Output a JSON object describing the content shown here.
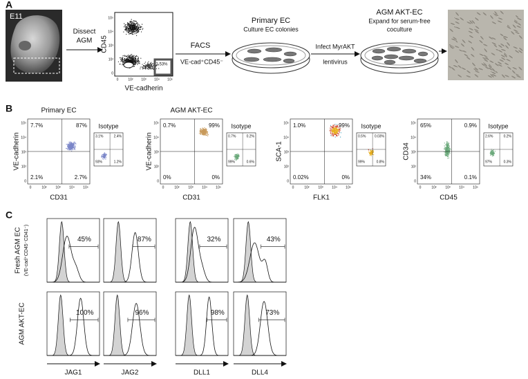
{
  "panel_a": {
    "label": "A",
    "embryo_label": "E11",
    "dissect": [
      "Dissect",
      "AGM"
    ],
    "facs_plot": {
      "y_label": "CD45",
      "x_label": "VE-cadherin",
      "gate": "2.53%"
    },
    "facs": "FACS",
    "facs_gate": "VE-cad⁺CD45⁻",
    "primary": {
      "title": "Primary EC",
      "subtitle": "Culture EC colonies"
    },
    "infect": [
      "Infect MyrAKT",
      "lentivirus"
    ],
    "akt": {
      "title": "AGM AKT-EC",
      "lines": [
        "Expand for serum-free",
        "coculture"
      ]
    }
  },
  "log_ticks": [
    "0",
    "10²",
    "10³",
    "10⁴",
    "10⁵"
  ],
  "panel_b": {
    "label": "B",
    "isotype": "Isotype",
    "plots": [
      {
        "title": "Primary EC",
        "y_label": "VE-cadherin",
        "x_label": "CD31",
        "quadrants": [
          "7.7%",
          "87%",
          "2.1%",
          "2.7%"
        ],
        "isotype_quadrants": [
          "3.1%",
          "2.4%",
          "93%",
          "1.2%"
        ]
      },
      {
        "title": "AGM AKT-EC",
        "y_label": "VE-cadherin",
        "x_label": "CD31",
        "quadrants": [
          "0.7%",
          "99%",
          "0%",
          "0%"
        ],
        "isotype_quadrants": [
          "0.7%",
          "0.2%",
          "99%",
          "0.6%"
        ]
      },
      {
        "y_label": "SCA-1",
        "x_label": "FLK1",
        "quadrants": [
          "1.0%",
          "99%",
          "0.02%",
          "0%"
        ],
        "isotype_quadrants": [
          "0.5%",
          "0.03%",
          "99%",
          "0.8%"
        ]
      },
      {
        "y_label": "CD34",
        "x_label": "CD45",
        "quadrants": [
          "65%",
          "0.9%",
          "34%",
          "0.1%"
        ],
        "isotype_quadrants": [
          "2.6%",
          "0.2%",
          "97%",
          "0.3%"
        ]
      }
    ]
  },
  "panel_c": {
    "label": "C",
    "rows": [
      {
        "label": "Fresh AGM EC",
        "sublabel": "(VE-cad⁺CD45⁻CD41⁻)",
        "values": [
          "45%",
          "87%",
          "32%",
          "43%"
        ]
      },
      {
        "label": "AGM AKT-EC",
        "values": [
          "100%",
          "96%",
          "98%",
          "73%"
        ]
      }
    ],
    "markers": [
      "JAG1",
      "JAG2",
      "DLL1",
      "DLL4"
    ]
  }
}
